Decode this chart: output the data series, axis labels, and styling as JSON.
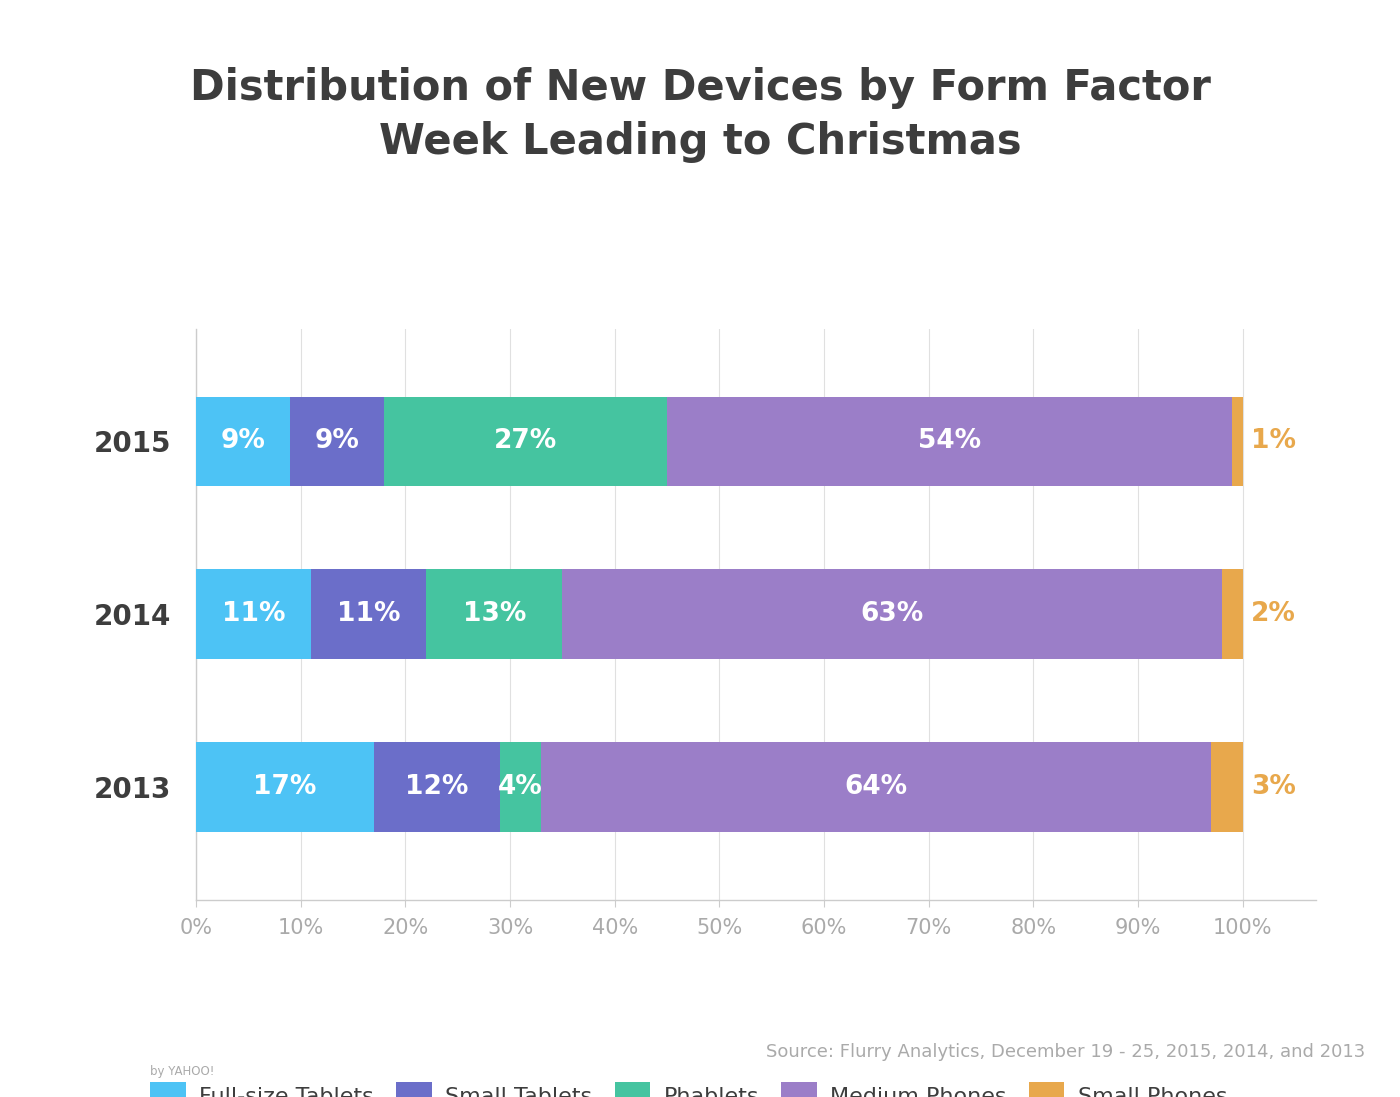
{
  "title": "Distribution of New Devices by Form Factor\nWeek Leading to Christmas",
  "years": [
    "2015",
    "2014",
    "2013"
  ],
  "categories": [
    "Full-size Tablets",
    "Small Tablets",
    "Phablets",
    "Medium Phones",
    "Small Phones"
  ],
  "colors": [
    "#4DC3F5",
    "#6B6EC9",
    "#45C4A0",
    "#9B7EC8",
    "#E8A84C"
  ],
  "data": {
    "2015": [
      9,
      9,
      27,
      54,
      1
    ],
    "2014": [
      11,
      11,
      13,
      63,
      2
    ],
    "2013": [
      17,
      12,
      4,
      64,
      3
    ]
  },
  "background_color": "#FFFFFF",
  "title_color": "#3D3D3D",
  "bar_label_color": "#FFFFFF",
  "last_label_color": "#E8A84C",
  "ylabel_color": "#3D3D3D",
  "xlabel_color": "#AAAAAA",
  "grid_color": "#E0E0E0",
  "footer_bg": "#3A3A3A",
  "source_text": "Source: Flurry Analytics, December 19 - 25, 2015, 2014, and 2013",
  "bar_height": 0.52,
  "title_fontsize": 30,
  "label_fontsize": 19,
  "tick_fontsize": 15,
  "legend_fontsize": 16,
  "year_fontsize": 20
}
